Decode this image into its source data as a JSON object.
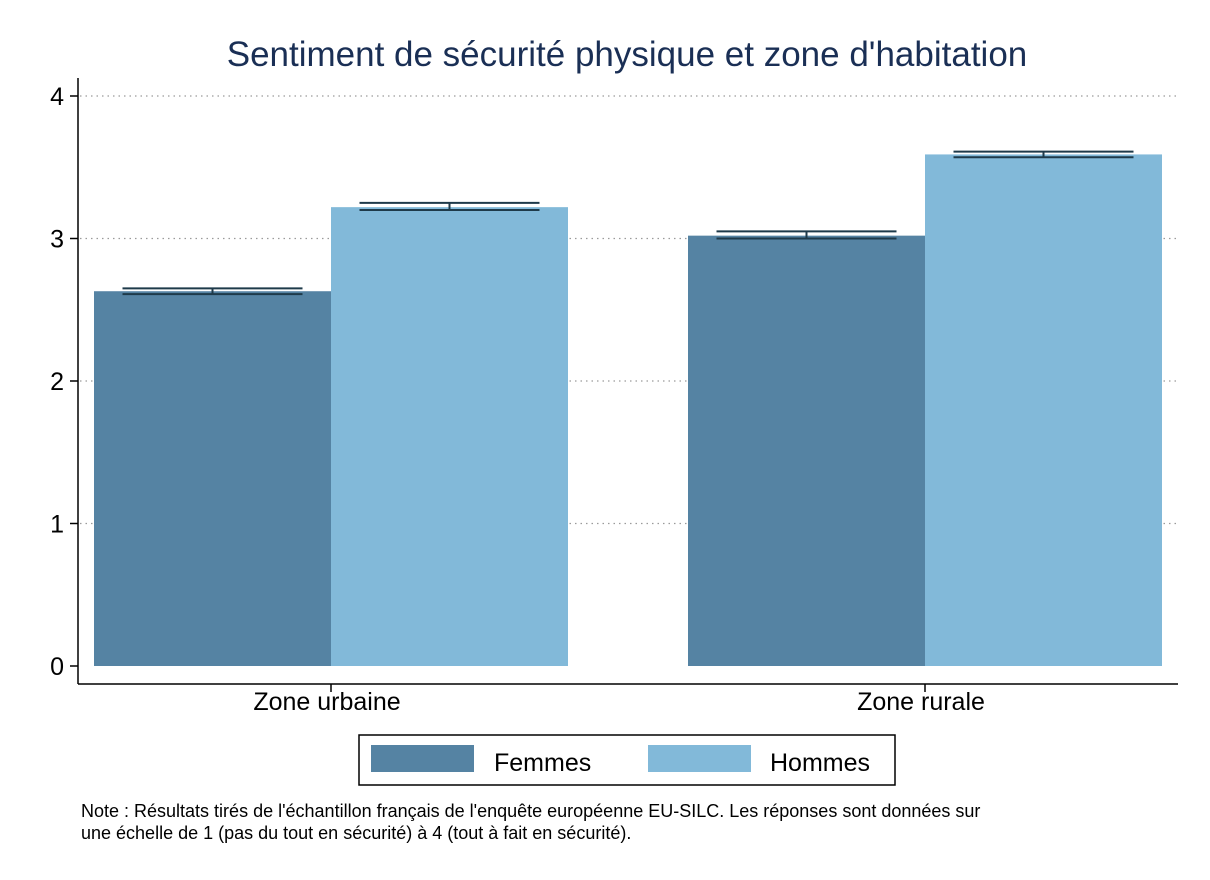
{
  "chart_data": {
    "type": "bar",
    "title": "Sentiment de sécurité physique et zone d'habitation",
    "xlabel": "",
    "ylabel": "",
    "categories": [
      "Zone urbaine",
      "Zone rurale"
    ],
    "series": [
      {
        "name": "Femmes",
        "color": "#5583a3",
        "values": [
          2.63,
          3.02
        ],
        "ci_low": [
          2.61,
          3.0
        ],
        "ci_high": [
          2.65,
          3.05
        ]
      },
      {
        "name": "Hommes",
        "color": "#82b9d9",
        "values": [
          3.22,
          3.59
        ],
        "ci_low": [
          3.2,
          3.57
        ],
        "ci_high": [
          3.25,
          3.61
        ]
      }
    ],
    "ylim": [
      0,
      4
    ],
    "yticks": [
      "0",
      "1",
      "2",
      "3",
      "4"
    ],
    "grid": "horizontal dotted",
    "legend_position": "bottom",
    "error_bar_color": "#1e3a4a",
    "note_lines": [
      "Note : Résultats tirés de l'échantillon français de l'enquête européenne EU-SILC. Les réponses sont données sur",
      "une échelle de  1 (pas du tout en sécurité) à 4 (tout à fait en sécurité)."
    ]
  }
}
